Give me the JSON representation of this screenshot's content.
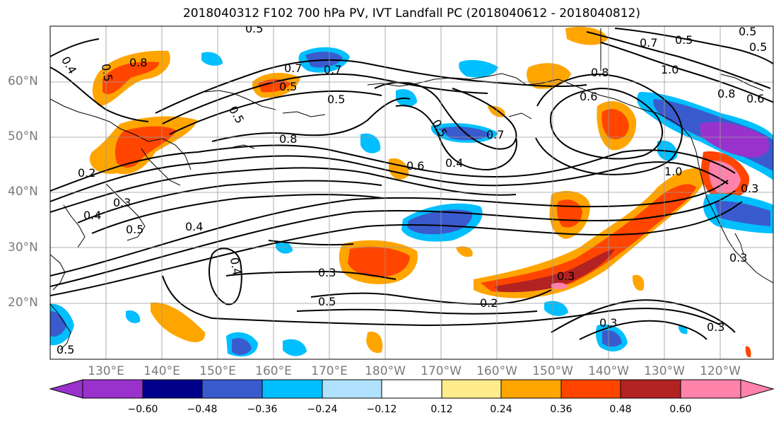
{
  "title": "2018040312 F102 700 hPa PV, IVT Landfall PC (2018040612 - 2018040812)",
  "map": {
    "lat_labels": [
      "20°N",
      "30°N",
      "40°N",
      "50°N",
      "60°N"
    ],
    "lon_labels": [
      "130°E",
      "140°E",
      "150°E",
      "160°E",
      "170°E",
      "180°W",
      "170°W",
      "160°W",
      "150°W",
      "140°W",
      "130°W",
      "120°W"
    ],
    "contour_labels": [
      "0.5",
      "0.4",
      "0.5",
      "0.8",
      "0.7",
      "0.7",
      "0.5",
      "0.5",
      "0.5",
      "0.8",
      "0.6",
      "0.5",
      "0.7",
      "0.8",
      "0.2",
      "0.3",
      "0.6",
      "0.4",
      "0.5",
      "0.4",
      "0.3",
      "0.5",
      "0.2",
      "0.3",
      "1.0",
      "0.3",
      "0.4",
      "0.4",
      "0.3",
      "0.5",
      "0.3",
      "0.3",
      "0.5",
      "0.7",
      "0.5",
      "1.0",
      "0.6",
      "0.8",
      "0.5"
    ]
  },
  "colorbar": {
    "labels": [
      "−0.60",
      "−0.48",
      "−0.36",
      "−0.24",
      "−0.12",
      "0.12",
      "0.24",
      "0.36",
      "0.48",
      "0.60"
    ],
    "colors": [
      "#9932cc",
      "#00008b",
      "#3a5bcd",
      "#00bfff",
      "#b0e2ff",
      "#ffffff",
      "#ffec8b",
      "#ffa500",
      "#ff4500",
      "#b22222",
      "#ff82ab"
    ]
  }
}
